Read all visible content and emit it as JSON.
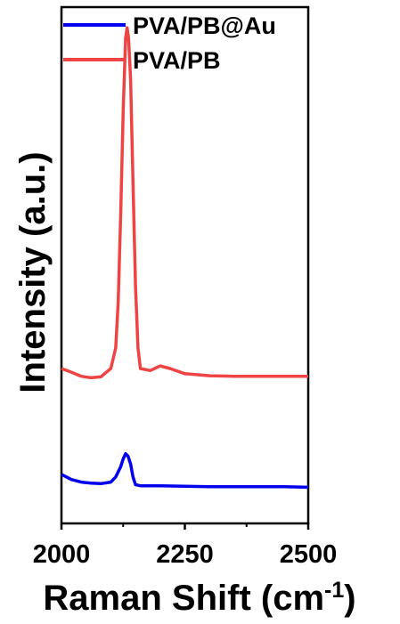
{
  "chart_data": {
    "type": "line",
    "xlabel": "Raman Shift (cm",
    "xlabel_sup": "-1",
    "xlabel_close": ")",
    "ylabel": "Intensity (a.u.)",
    "xlim": [
      2000,
      2500
    ],
    "ylim": [
      0,
      1
    ],
    "x_ticks": [
      {
        "value": 2000,
        "label": "2000"
      },
      {
        "value": 2250,
        "label": "2250"
      },
      {
        "value": 2500,
        "label": "2500"
      }
    ],
    "y_ticks_shown": false,
    "grid": false,
    "legend_position": "top-left",
    "series": [
      {
        "name": "PVA/PB@Au",
        "color": "#0000ee",
        "x": [
          2000,
          2020,
          2040,
          2060,
          2080,
          2100,
          2110,
          2120,
          2125,
          2130,
          2135,
          2140,
          2145,
          2150,
          2160,
          2180,
          2200,
          2250,
          2300,
          2350,
          2400,
          2450,
          2500
        ],
        "y": [
          0.095,
          0.085,
          0.08,
          0.078,
          0.077,
          0.08,
          0.09,
          0.11,
          0.125,
          0.135,
          0.13,
          0.115,
          0.09,
          0.075,
          0.073,
          0.073,
          0.073,
          0.072,
          0.071,
          0.071,
          0.071,
          0.071,
          0.07
        ]
      },
      {
        "name": "PVA/PB",
        "color": "#ee4444",
        "x": [
          2000,
          2020,
          2040,
          2060,
          2080,
          2100,
          2110,
          2115,
          2120,
          2125,
          2130,
          2133,
          2136,
          2140,
          2145,
          2150,
          2155,
          2160,
          2180,
          2200,
          2220,
          2250,
          2300,
          2350,
          2400,
          2450,
          2500
        ],
        "y": [
          0.3,
          0.293,
          0.285,
          0.282,
          0.284,
          0.3,
          0.34,
          0.43,
          0.6,
          0.8,
          0.94,
          0.96,
          0.94,
          0.86,
          0.66,
          0.46,
          0.34,
          0.3,
          0.296,
          0.305,
          0.3,
          0.29,
          0.286,
          0.285,
          0.285,
          0.285,
          0.285
        ]
      }
    ]
  }
}
